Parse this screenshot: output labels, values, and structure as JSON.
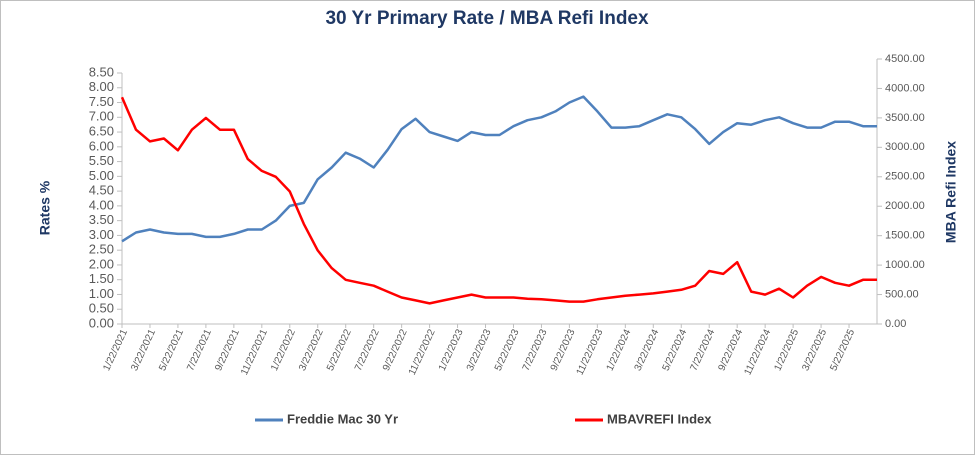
{
  "chart_data": {
    "type": "line",
    "title": "30 Yr Primary Rate / MBA Refi Index",
    "y_label": "Rates %",
    "y2_label": "MBA Refi Index",
    "categories": [
      "1/22/2021",
      null,
      "3/22/2021",
      null,
      "5/22/2021",
      null,
      "7/22/2021",
      null,
      "9/22/2021",
      null,
      "11/22/2021",
      null,
      "1/22/2022",
      null,
      "3/22/2022",
      null,
      "5/22/2022",
      null,
      "7/22/2022",
      null,
      "9/22/2022",
      null,
      "11/22/2022",
      null,
      "1/22/2023",
      null,
      "3/22/2023",
      null,
      "5/22/2023",
      null,
      "7/22/2023",
      null,
      "9/22/2023",
      null,
      "11/22/2023",
      null,
      "1/22/2024",
      null,
      "3/22/2024",
      null,
      "5/22/2024",
      null,
      "7/22/2024",
      null,
      "9/22/2024",
      null,
      "11/22/2024",
      null,
      "1/22/2025",
      null,
      "3/22/2025",
      null,
      "5/22/2025",
      null,
      null
    ],
    "series": [
      {
        "name": "Freddie Mac 30 Yr",
        "color": "#4f81bd",
        "axis": "y",
        "values": [
          2.8,
          3.1,
          3.2,
          3.1,
          3.05,
          3.05,
          2.95,
          2.95,
          3.05,
          3.2,
          3.2,
          3.5,
          4.0,
          4.1,
          4.9,
          5.3,
          5.8,
          5.6,
          5.3,
          5.9,
          6.6,
          6.95,
          6.5,
          6.35,
          6.2,
          6.5,
          6.4,
          6.4,
          6.7,
          6.9,
          7.0,
          7.2,
          7.5,
          7.7,
          7.2,
          6.65,
          6.65,
          6.7,
          6.9,
          7.1,
          7.0,
          6.6,
          6.1,
          6.5,
          6.8,
          6.75,
          6.9,
          7.0,
          6.8,
          6.65,
          6.65,
          6.85,
          6.85,
          6.7,
          6.7
        ]
      },
      {
        "name": "MBAVREFI Index",
        "color": "#ff0000",
        "axis": "y2",
        "values": [
          3850,
          3300,
          3100,
          3150,
          2950,
          3300,
          3500,
          3300,
          3300,
          2800,
          2600,
          2500,
          2250,
          1700,
          1250,
          950,
          750,
          700,
          650,
          550,
          450,
          400,
          350,
          400,
          450,
          500,
          450,
          450,
          450,
          430,
          420,
          400,
          380,
          380,
          420,
          450,
          480,
          500,
          520,
          550,
          580,
          650,
          900,
          850,
          1050,
          550,
          500,
          600,
          450,
          650,
          800,
          700,
          650,
          750,
          750
        ]
      }
    ],
    "ylim": [
      0,
      8.5
    ],
    "yticks": [
      {
        "value": 0,
        "label": "0.00"
      },
      {
        "value": 0.5,
        "label": "0.50"
      },
      {
        "value": 1,
        "label": "1.00"
      },
      {
        "value": 1.5,
        "label": "1.50"
      },
      {
        "value": 2,
        "label": "2.00"
      },
      {
        "value": 2.5,
        "label": "2.50"
      },
      {
        "value": 3,
        "label": "3.00"
      },
      {
        "value": 3.5,
        "label": "3.50"
      },
      {
        "value": 4,
        "label": "4.00"
      },
      {
        "value": 4.5,
        "label": "4.50"
      },
      {
        "value": 5,
        "label": "5.00"
      },
      {
        "value": 5.5,
        "label": "5.50"
      },
      {
        "value": 6,
        "label": "6.00"
      },
      {
        "value": 6.5,
        "label": "6.50"
      },
      {
        "value": 7,
        "label": "7.00"
      },
      {
        "value": 7.5,
        "label": "7.50"
      },
      {
        "value": 8,
        "label": "8.00"
      },
      {
        "value": 8.5,
        "label": "8.50"
      }
    ],
    "y2lim": [
      0,
      4500
    ],
    "y2ticks": [
      {
        "value": 0,
        "label": "0.00"
      },
      {
        "value": 500,
        "label": "500.00"
      },
      {
        "value": 1000,
        "label": "1000.00"
      },
      {
        "value": 1500,
        "label": "1500.00"
      },
      {
        "value": 2000,
        "label": "2000.00"
      },
      {
        "value": 2500,
        "label": "2500.00"
      },
      {
        "value": 3000,
        "label": "3000.00"
      },
      {
        "value": 3500,
        "label": "3500.00"
      },
      {
        "value": 4000,
        "label": "4000.00"
      },
      {
        "value": 4500,
        "label": "4500.00"
      }
    ],
    "legend": "bottom",
    "grid": false
  }
}
